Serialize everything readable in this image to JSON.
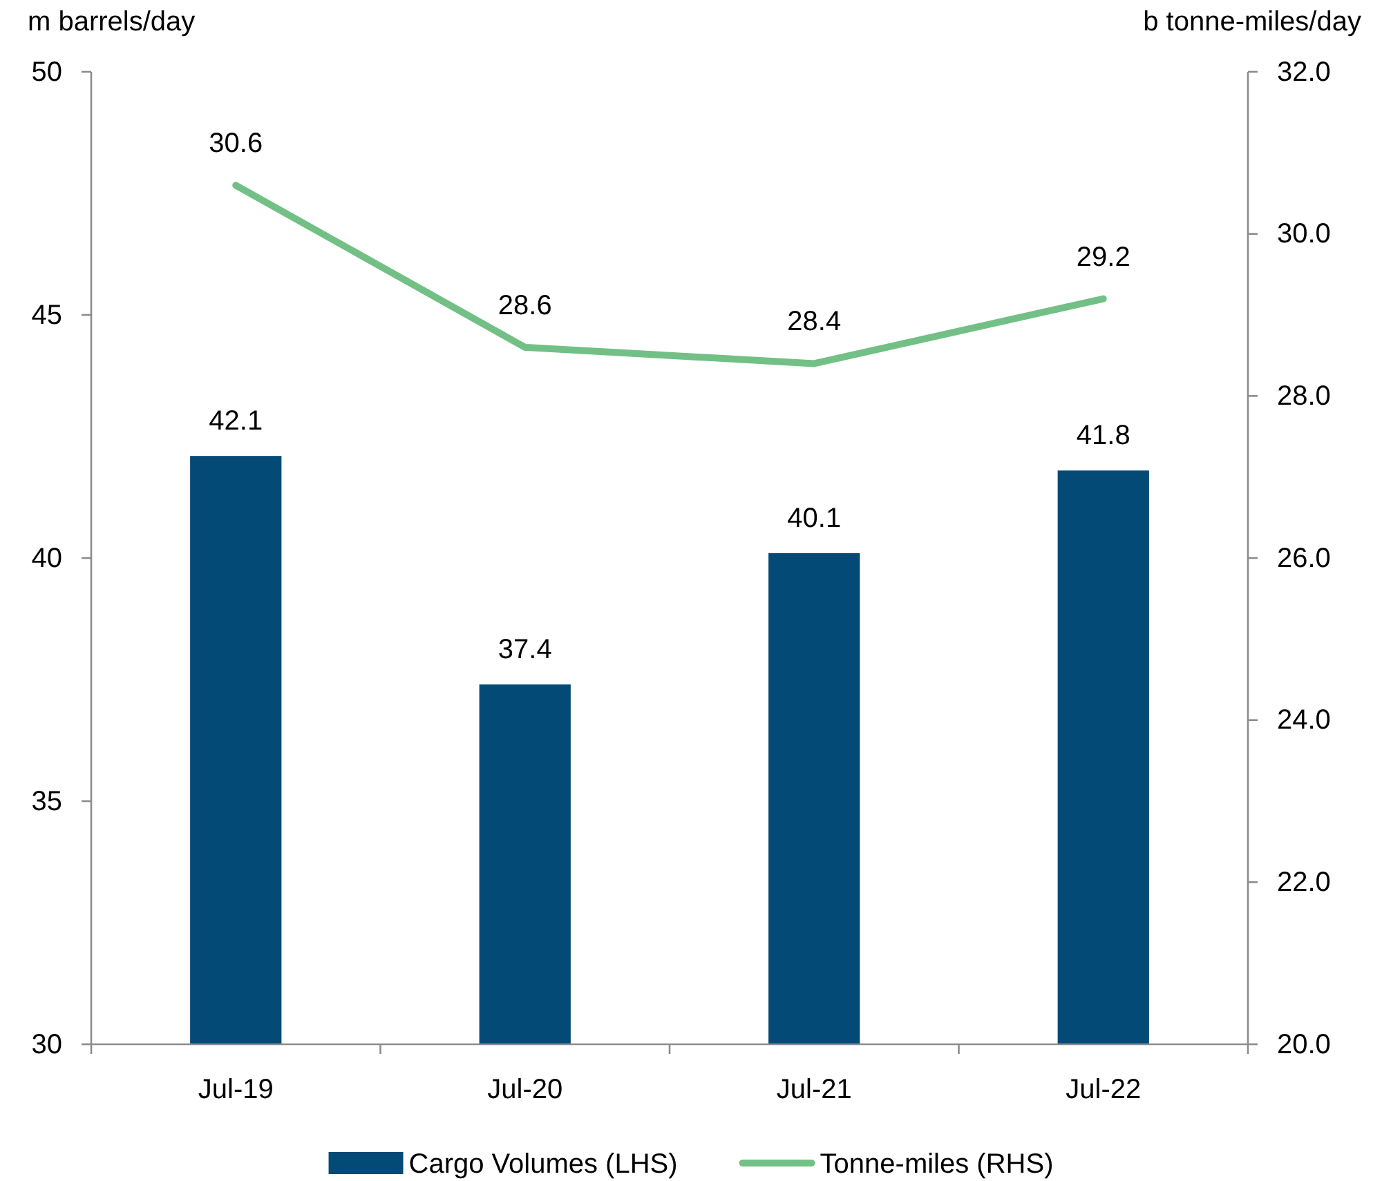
{
  "chart_data": {
    "type": "bar",
    "categories": [
      "Jul-19",
      "Jul-20",
      "Jul-21",
      "Jul-22"
    ],
    "series": [
      {
        "name": "Cargo Volumes (LHS)",
        "color": "#044a76",
        "values": [
          42.1,
          37.4,
          40.1,
          41.8
        ]
      },
      {
        "name": "Tonne-miles (RHS)",
        "type": "line",
        "axis": "y2",
        "color": "#72c085",
        "values": [
          30.6,
          28.6,
          28.4,
          29.2
        ]
      }
    ],
    "ylabel": "m barrels/day",
    "y2label": "b tonne-miles/day",
    "ylim": [
      30,
      50
    ],
    "yticks": [
      30,
      35,
      40,
      45,
      50
    ],
    "y2lim": [
      20,
      32
    ],
    "y2ticks": [
      {
        "value": 20,
        "label": "20.0"
      },
      {
        "value": 22,
        "label": "22.0"
      },
      {
        "value": 24,
        "label": "24.0"
      },
      {
        "value": 26,
        "label": "26.0"
      },
      {
        "value": 28,
        "label": "28.0"
      },
      {
        "value": 30,
        "label": "30.0"
      },
      {
        "value": 32,
        "label": "32.0"
      }
    ],
    "data_labels": true,
    "legend": "bottom",
    "line_style": "solid"
  }
}
